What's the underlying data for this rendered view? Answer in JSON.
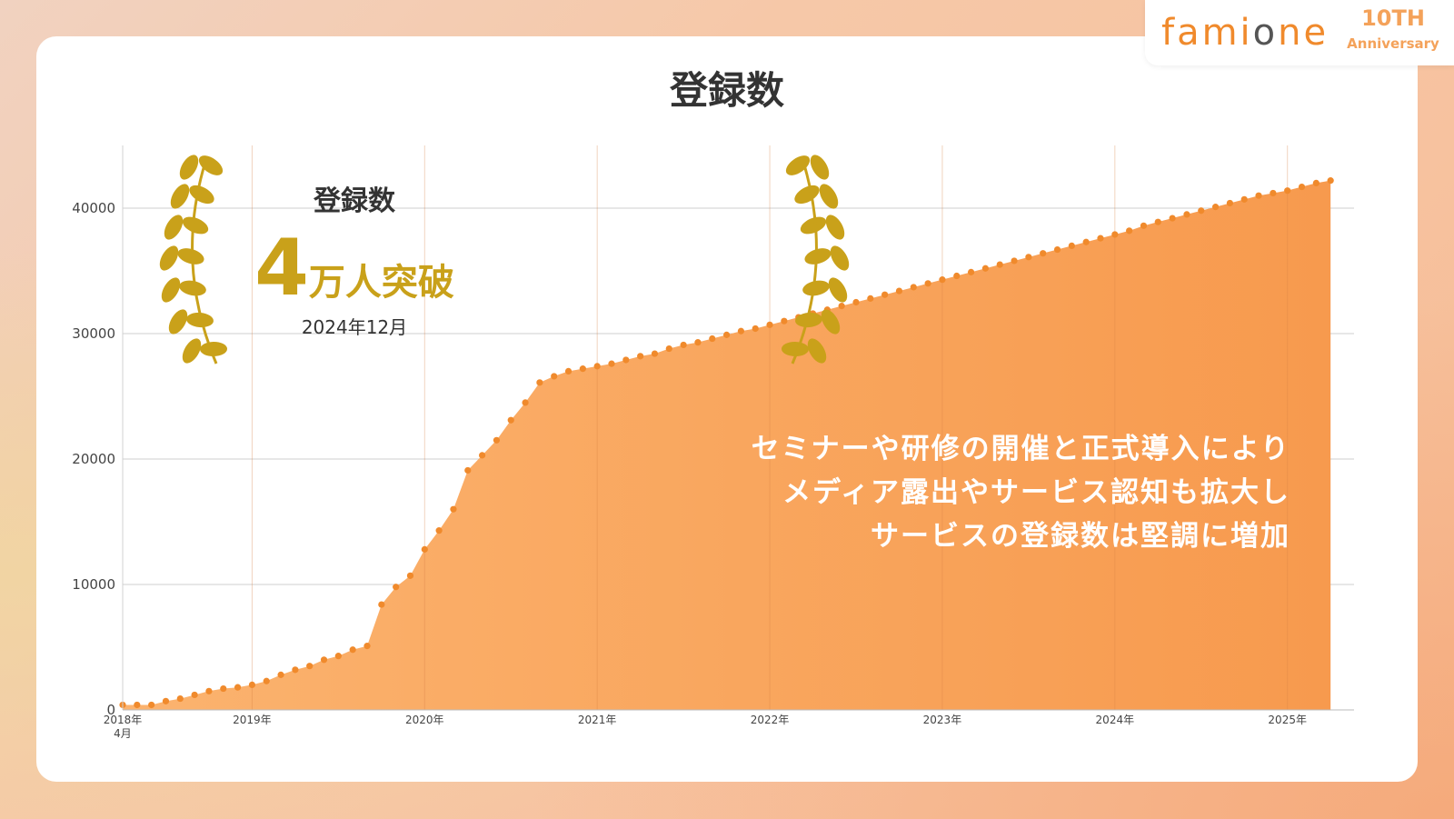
{
  "logo": {
    "brand": "famione",
    "anniversary_number": "10TH",
    "anniversary_word": "Anniversary"
  },
  "page_title": "登録数",
  "award": {
    "label": "登録数",
    "number": "4",
    "unit": "万人突破",
    "date": "2024年12月"
  },
  "annotation": {
    "lines": [
      "セミナーや研修の開催と正式導入により",
      "メディア露出やサービス認知も拡大し",
      "サービスの登録数は堅調に増加"
    ]
  },
  "colors": {
    "area": "#f9a25c",
    "points": "#f08a2c",
    "gold": "#c9a11a",
    "grid": "#cccccc"
  },
  "chart_data": {
    "type": "area",
    "title": "登録数",
    "xlabel": "",
    "ylabel": "",
    "ylim": [
      0,
      45000
    ],
    "yticks": [
      0,
      10000,
      20000,
      30000,
      40000
    ],
    "xlim": [
      "2018-04",
      "2025-05"
    ],
    "x_tick_labels": [
      {
        "date": "2018-04",
        "label": "2018年",
        "sublabel": "4月"
      },
      {
        "date": "2019-01",
        "label": "2019年"
      },
      {
        "date": "2020-01",
        "label": "2020年"
      },
      {
        "date": "2021-01",
        "label": "2021年"
      },
      {
        "date": "2022-01",
        "label": "2022年"
      },
      {
        "date": "2023-01",
        "label": "2023年"
      },
      {
        "date": "2024-01",
        "label": "2024年"
      },
      {
        "date": "2025-01",
        "label": "2025年"
      }
    ],
    "grid": true,
    "series": [
      {
        "x": [
          "2018-04",
          "2018-05",
          "2018-06",
          "2018-07",
          "2018-08",
          "2018-09",
          "2018-10",
          "2018-11",
          "2018-12",
          "2019-01",
          "2019-02",
          "2019-03",
          "2019-04",
          "2019-05",
          "2019-06",
          "2019-07",
          "2019-08",
          "2019-09",
          "2019-10",
          "2019-11",
          "2019-12",
          "2020-01",
          "2020-02",
          "2020-03",
          "2020-04",
          "2020-05",
          "2020-06",
          "2020-07",
          "2020-08",
          "2020-09",
          "2020-10",
          "2020-11",
          "2020-12",
          "2021-01",
          "2021-02",
          "2021-03",
          "2021-04",
          "2021-05",
          "2021-06",
          "2021-07",
          "2021-08",
          "2021-09",
          "2021-10",
          "2021-11",
          "2021-12",
          "2022-01",
          "2022-02",
          "2022-03",
          "2022-04",
          "2022-05",
          "2022-06",
          "2022-07",
          "2022-08",
          "2022-09",
          "2022-10",
          "2022-11",
          "2022-12",
          "2023-01",
          "2023-02",
          "2023-03",
          "2023-04",
          "2023-05",
          "2023-06",
          "2023-07",
          "2023-08",
          "2023-09",
          "2023-10",
          "2023-11",
          "2023-12",
          "2024-01",
          "2024-02",
          "2024-03",
          "2024-04",
          "2024-05",
          "2024-06",
          "2024-07",
          "2024-08",
          "2024-09",
          "2024-10",
          "2024-11",
          "2024-12",
          "2025-01",
          "2025-02",
          "2025-03",
          "2025-04"
        ],
        "values": [
          400,
          400,
          400,
          700,
          900,
          1200,
          1500,
          1700,
          1800,
          2000,
          2300,
          2800,
          3200,
          3500,
          4000,
          4300,
          4800,
          5100,
          8400,
          9800,
          10700,
          12800,
          14300,
          16000,
          19100,
          20300,
          21500,
          23100,
          24500,
          26100,
          26600,
          27000,
          27200,
          27400,
          27600,
          27900,
          28200,
          28400,
          28800,
          29100,
          29300,
          29600,
          29900,
          30200,
          30400,
          30700,
          31000,
          31300,
          31600,
          31900,
          32200,
          32500,
          32800,
          33100,
          33400,
          33700,
          34000,
          34300,
          34600,
          34900,
          35200,
          35500,
          35800,
          36100,
          36400,
          36700,
          37000,
          37300,
          37600,
          37900,
          38200,
          38600,
          38900,
          39200,
          39500,
          39800,
          40100,
          40400,
          40700,
          41000,
          41200,
          41400,
          41700,
          42000,
          42200
        ]
      }
    ]
  }
}
